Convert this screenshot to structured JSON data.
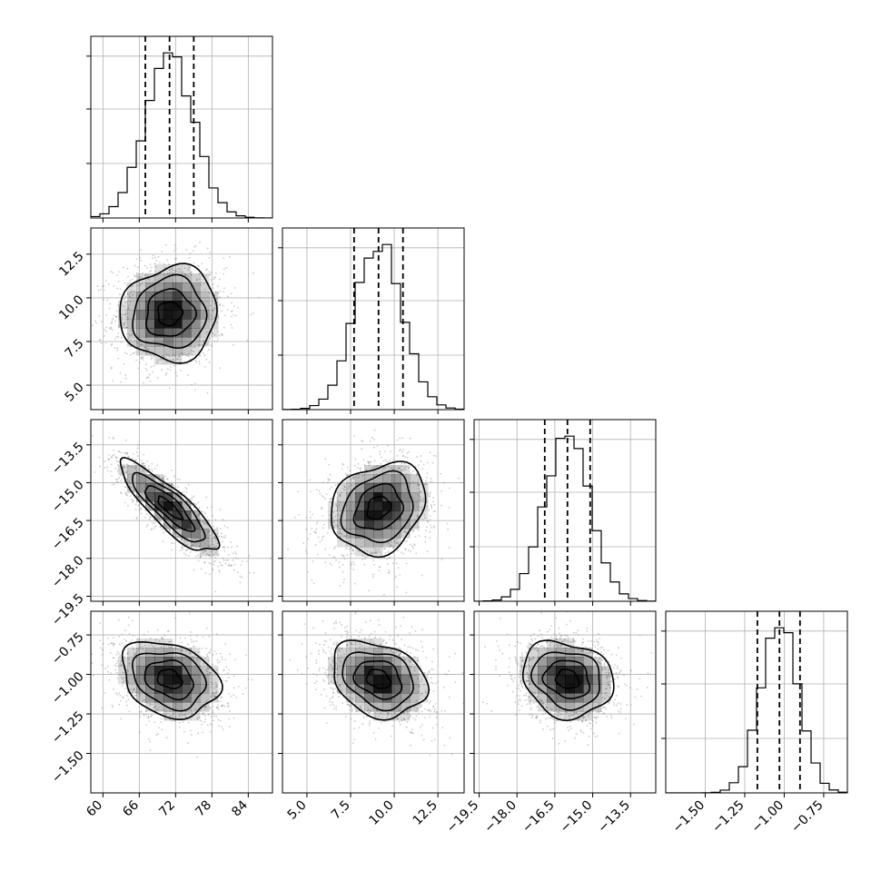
{
  "chart_data": {
    "type": "corner",
    "parameters": [
      {
        "range": [
          58,
          88
        ],
        "ticks": [
          60,
          66,
          72,
          78,
          84
        ],
        "tick_labels": [
          "60",
          "66",
          "72",
          "78",
          "84"
        ],
        "mean": 71,
        "sd": 4,
        "quantiles": [
          67,
          71,
          75
        ]
      },
      {
        "range": [
          3.6,
          14.0
        ],
        "ticks": [
          5.0,
          7.5,
          10.0,
          12.5
        ],
        "tick_labels": [
          "5.0",
          "7.5",
          "10.0",
          "12.5"
        ],
        "mean": 9.1,
        "sd": 1.35,
        "quantiles": [
          7.7,
          9.1,
          10.5
        ]
      },
      {
        "range": [
          -19.7,
          -12.5
        ],
        "ticks": [
          -19.5,
          -18.0,
          -16.5,
          -15.0,
          -13.5
        ],
        "tick_labels": [
          "−19.5",
          "−18.0",
          "−16.5",
          "−15.0",
          "−13.5"
        ],
        "mean": -16.0,
        "sd": 0.9,
        "quantiles": [
          -16.9,
          -16.0,
          -15.1
        ]
      },
      {
        "range": [
          -1.75,
          -0.6
        ],
        "ticks": [
          -1.5,
          -1.25,
          -1.0,
          -0.75
        ],
        "tick_labels": [
          "−1.50",
          "−1.25",
          "−1.00",
          "−0.75"
        ],
        "mean": -1.03,
        "sd": 0.12,
        "quantiles": [
          -1.17,
          -1.03,
          -0.9
        ]
      }
    ],
    "correlations": [
      {
        "pair": [
          1,
          0
        ],
        "rho": 0.05
      },
      {
        "pair": [
          2,
          0
        ],
        "rho": -0.85
      },
      {
        "pair": [
          2,
          1
        ],
        "rho": 0.2
      },
      {
        "pair": [
          3,
          0
        ],
        "rho": -0.25
      },
      {
        "pair": [
          3,
          1
        ],
        "rho": -0.25
      },
      {
        "pair": [
          3,
          2
        ],
        "rho": -0.15
      }
    ],
    "histogram_bins": 20,
    "contour_levels": [
      0.5,
      1.0,
      1.5,
      2.0
    ],
    "grid": true,
    "colors": {
      "points": "#8c8c8c",
      "density": "#000000",
      "lines": "#000000"
    }
  }
}
